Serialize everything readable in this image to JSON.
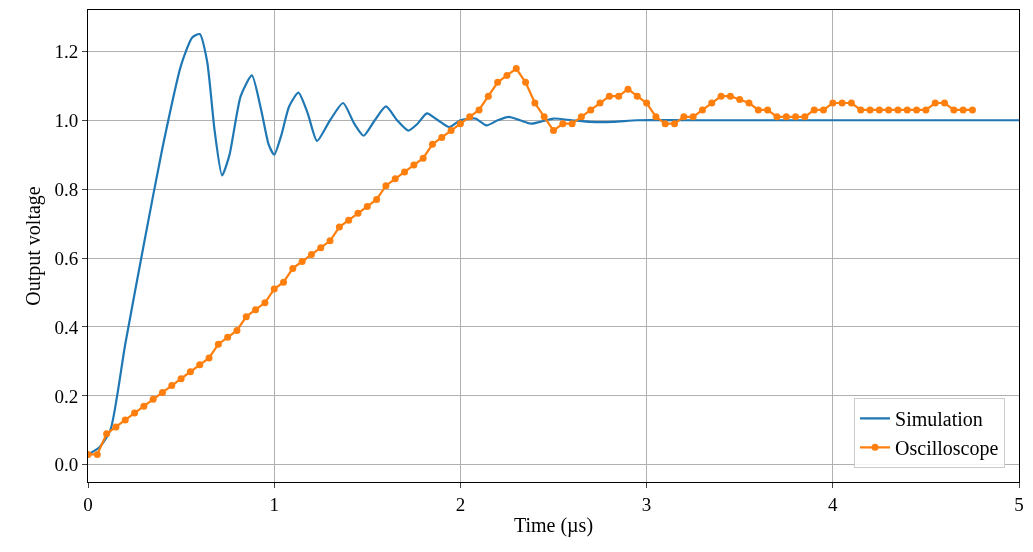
{
  "chart_data": {
    "type": "line",
    "xlabel": "Time (µs)",
    "ylabel": "Output voltage",
    "xlim": [
      0,
      5
    ],
    "ylim": [
      -0.05,
      1.32
    ],
    "xticks": [
      0,
      1,
      2,
      3,
      4,
      5
    ],
    "yticks": [
      {
        "value": 0,
        "label": "0.0"
      },
      {
        "value": 0.2,
        "label": "0.2"
      },
      {
        "value": 0.4,
        "label": "0.4"
      },
      {
        "value": 0.6,
        "label": "0.6"
      },
      {
        "value": 0.8,
        "label": "0.8"
      },
      {
        "value": 1.0,
        "label": "1.0"
      },
      {
        "value": 1.2,
        "label": "1.2"
      }
    ],
    "grid": true,
    "legend": "bottom right",
    "series": [
      {
        "name": "Simulation",
        "color": "#1f77b4",
        "marker": "none",
        "x": [
          0,
          0.06,
          0.12,
          0.2,
          0.3,
          0.4,
          0.5,
          0.56,
          0.6,
          0.64,
          0.68,
          0.72,
          0.76,
          0.82,
          0.88,
          0.93,
          0.97,
          1.0,
          1.04,
          1.08,
          1.13,
          1.18,
          1.23,
          1.3,
          1.37,
          1.43,
          1.48,
          1.54,
          1.6,
          1.66,
          1.72,
          1.77,
          1.82,
          1.88,
          1.94,
          2.0,
          2.08,
          2.14,
          2.2,
          2.26,
          2.32,
          2.38,
          2.44,
          2.5,
          2.6,
          2.7,
          2.82,
          2.95,
          3.2,
          3.5,
          4.0,
          4.5,
          5.0
        ],
        "values": [
          0.03,
          0.05,
          0.1,
          0.35,
          0.64,
          0.92,
          1.16,
          1.24,
          1.25,
          1.17,
          0.97,
          0.84,
          0.9,
          1.07,
          1.13,
          1.03,
          0.93,
          0.9,
          0.96,
          1.04,
          1.08,
          1.02,
          0.94,
          1.0,
          1.05,
          0.99,
          0.955,
          1.0,
          1.04,
          1.0,
          0.97,
          0.99,
          1.02,
          1.0,
          0.98,
          1.0,
          1.005,
          0.985,
          1.0,
          1.01,
          1.0,
          0.99,
          0.997,
          1.005,
          1.0,
          0.995,
          0.995,
          1.0,
          1.0,
          1.0,
          1.0,
          1.0,
          1.0
        ]
      },
      {
        "name": "Oscilloscope",
        "color": "#ff7f0e",
        "marker": "circle",
        "x": [
          0,
          0.05,
          0.1,
          0.15,
          0.2,
          0.25,
          0.3,
          0.35,
          0.4,
          0.45,
          0.5,
          0.55,
          0.6,
          0.65,
          0.7,
          0.75,
          0.8,
          0.85,
          0.9,
          0.95,
          1.0,
          1.05,
          1.1,
          1.15,
          1.2,
          1.25,
          1.3,
          1.35,
          1.4,
          1.45,
          1.5,
          1.55,
          1.6,
          1.65,
          1.7,
          1.75,
          1.8,
          1.85,
          1.9,
          1.95,
          2.0,
          2.05,
          2.1,
          2.15,
          2.2,
          2.25,
          2.3,
          2.35,
          2.4,
          2.45,
          2.5,
          2.55,
          2.6,
          2.65,
          2.7,
          2.75,
          2.8,
          2.85,
          2.9,
          2.95,
          3.0,
          3.05,
          3.1,
          3.15,
          3.2,
          3.25,
          3.3,
          3.35,
          3.4,
          3.45,
          3.5,
          3.55,
          3.6,
          3.65,
          3.7,
          3.75,
          3.8,
          3.85,
          3.9,
          3.95,
          4.0,
          4.05,
          4.1,
          4.15,
          4.2,
          4.25,
          4.3,
          4.35,
          4.4,
          4.45,
          4.5,
          4.55,
          4.6,
          4.65,
          4.7,
          4.75
        ],
        "values": [
          0.03,
          0.03,
          0.09,
          0.11,
          0.13,
          0.15,
          0.17,
          0.19,
          0.21,
          0.23,
          0.25,
          0.27,
          0.29,
          0.31,
          0.35,
          0.37,
          0.39,
          0.43,
          0.45,
          0.47,
          0.51,
          0.53,
          0.57,
          0.59,
          0.61,
          0.63,
          0.65,
          0.69,
          0.71,
          0.73,
          0.75,
          0.77,
          0.81,
          0.83,
          0.85,
          0.87,
          0.89,
          0.93,
          0.95,
          0.97,
          0.99,
          1.01,
          1.03,
          1.07,
          1.11,
          1.13,
          1.15,
          1.11,
          1.05,
          1.01,
          0.97,
          0.99,
          0.99,
          1.01,
          1.03,
          1.05,
          1.07,
          1.07,
          1.09,
          1.07,
          1.05,
          1.01,
          0.99,
          0.99,
          1.01,
          1.01,
          1.03,
          1.05,
          1.07,
          1.07,
          1.06,
          1.05,
          1.03,
          1.03,
          1.01,
          1.01,
          1.01,
          1.01,
          1.03,
          1.03,
          1.05,
          1.05,
          1.05,
          1.03,
          1.03,
          1.03,
          1.03,
          1.03,
          1.03,
          1.03,
          1.03,
          1.05,
          1.05,
          1.03,
          1.03,
          1.03
        ]
      }
    ]
  }
}
